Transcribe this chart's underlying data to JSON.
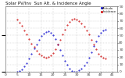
{
  "title": "Solar PV/Inv  Sun Alt. & Incidence Angle",
  "bg_color": "#ffffff",
  "plot_bg": "#ffffff",
  "grid_color": "#aaaaaa",
  "ylim": [
    0,
    90
  ],
  "xlim": [
    0,
    47
  ],
  "legend_blue": "Altitude",
  "legend_red": "Incidence",
  "blue_color": "#0000cc",
  "red_color": "#cc0000",
  "blue_x": [
    5,
    6,
    7,
    8,
    9,
    10,
    11,
    12,
    13,
    14,
    15,
    16,
    17,
    18,
    19,
    20,
    21,
    22,
    23,
    24,
    25,
    26,
    27,
    28,
    29,
    30,
    31,
    32,
    33,
    34,
    35,
    36,
    37,
    38,
    39,
    40,
    41,
    42
  ],
  "blue_y": [
    0,
    1,
    3,
    7,
    12,
    18,
    25,
    32,
    38,
    44,
    49,
    53,
    55,
    56,
    54,
    50,
    45,
    38,
    30,
    22,
    15,
    9,
    4,
    1,
    0,
    0,
    2,
    4,
    8,
    13,
    19,
    27,
    35,
    42,
    49,
    54,
    57,
    58
  ],
  "red_x": [
    5,
    6,
    7,
    8,
    9,
    10,
    11,
    12,
    13,
    14,
    15,
    16,
    17,
    18,
    19,
    20,
    21,
    22,
    23,
    24,
    25,
    26,
    27,
    28,
    29,
    30,
    31,
    32,
    33,
    34,
    35,
    36,
    37,
    38,
    39,
    40,
    41,
    42
  ],
  "red_y": [
    72,
    68,
    63,
    57,
    51,
    45,
    39,
    34,
    29,
    25,
    22,
    20,
    19,
    20,
    22,
    26,
    31,
    37,
    44,
    51,
    58,
    64,
    69,
    72,
    73,
    72,
    70,
    67,
    62,
    57,
    51,
    44,
    37,
    31,
    25,
    21,
    19,
    18
  ],
  "title_color": "#111111",
  "title_fontsize": 4.0,
  "tick_fontsize": 3.2,
  "right_yticks": [
    0,
    10,
    20,
    30,
    40,
    50,
    60,
    70,
    80,
    90
  ],
  "x_ticklabels": [
    "0",
    "5",
    "10",
    "15",
    "20",
    "25",
    "30",
    "35",
    "40",
    "45"
  ],
  "x_ticks": [
    0,
    5,
    10,
    15,
    20,
    25,
    30,
    35,
    40,
    45
  ]
}
